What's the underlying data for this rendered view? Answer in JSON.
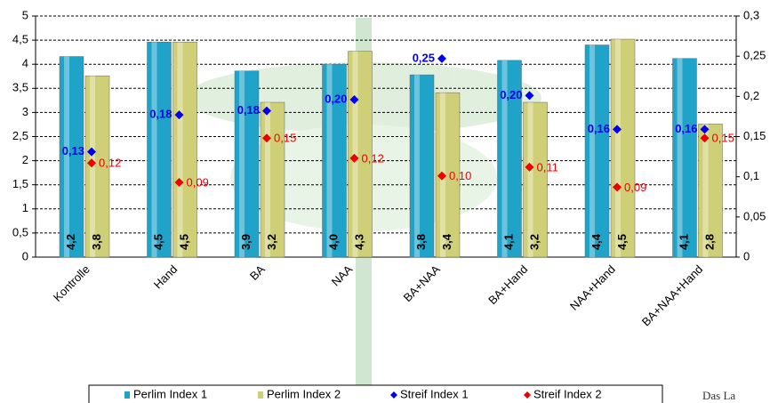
{
  "chart_data": {
    "type": "bar_combo",
    "categories": [
      "Kontrolle",
      "Hand",
      "BA",
      "NAA",
      "BA+NAA",
      "BA+Hand",
      "NAA+Hand",
      "BA+NAA+Hand"
    ],
    "series": [
      {
        "name": "Perlim Index 1",
        "color": "#1fa3c8",
        "type": "bar",
        "values": [
          4.16,
          4.46,
          3.86,
          4.0,
          3.78,
          4.08,
          4.4,
          4.12
        ],
        "value_labels": [
          "4,2",
          "4,5",
          "3,9",
          "4,0",
          "3,8",
          "4,1",
          "4,4",
          "4,1"
        ]
      },
      {
        "name": "Perlim Index 2",
        "color": "#cfcf78",
        "type": "bar",
        "values": [
          3.76,
          4.46,
          3.21,
          4.27,
          3.41,
          3.21,
          4.52,
          2.76
        ],
        "value_labels": [
          "3,8",
          "4,5",
          "3,2",
          "4,3",
          "3,4",
          "3,2",
          "4,5",
          "2,8"
        ]
      },
      {
        "name": "Streif Index 1",
        "color": "#0000ee",
        "type": "marker",
        "axis": "y2",
        "values": [
          0.131,
          0.177,
          0.182,
          0.196,
          0.247,
          0.201,
          0.159,
          0.159
        ],
        "value_labels": [
          "0,13",
          "0,18",
          "0,18",
          "0,20",
          "0,25",
          "0,20",
          "0,16",
          "0,16"
        ]
      },
      {
        "name": "Streif Index 2",
        "color": "#ee0000",
        "type": "marker",
        "axis": "y2",
        "values": [
          0.117,
          0.093,
          0.148,
          0.123,
          0.101,
          0.112,
          0.087,
          0.148
        ],
        "value_labels": [
          "0,12",
          "0,09",
          "0,15",
          "0,12",
          "0,10",
          "0,11",
          "0,09",
          "0,15"
        ]
      }
    ],
    "ylim": [
      0,
      5
    ],
    "yticks": [
      0,
      {
        "value": 0.5,
        "label": "0,5"
      },
      1,
      {
        "value": 1.5,
        "label": "1,5"
      },
      2,
      {
        "value": 2.5,
        "label": "2,5"
      },
      3,
      {
        "value": 3.5,
        "label": "3,5"
      },
      4,
      {
        "value": 4.5,
        "label": "4,5"
      },
      5
    ],
    "y2lim": [
      0,
      0.3
    ],
    "y2ticks": [
      0,
      {
        "value": 0.05,
        "label": "0,05"
      },
      {
        "value": 0.1,
        "label": "0,1"
      },
      {
        "value": 0.15,
        "label": "0,15"
      },
      {
        "value": 0.2,
        "label": "0,2"
      },
      {
        "value": 0.25,
        "label": "0,25"
      },
      {
        "value": 0.3,
        "label": "0,3"
      }
    ],
    "grid": true,
    "legend": "bottom",
    "watermark_text": "Das La"
  }
}
